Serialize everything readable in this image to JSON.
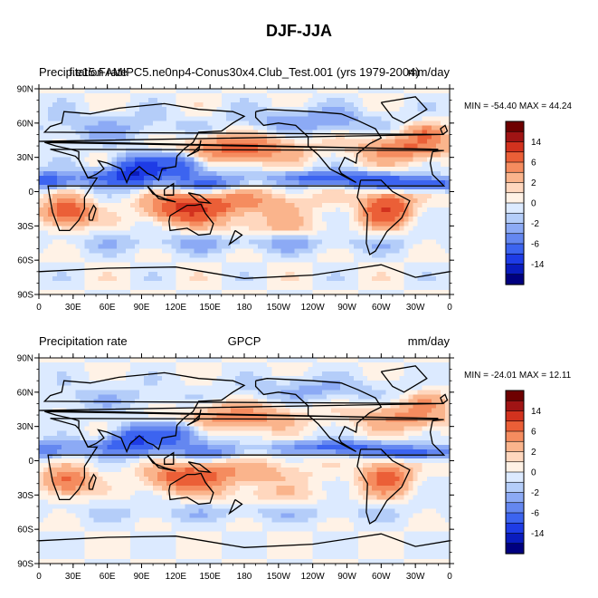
{
  "figure": {
    "title": "DJF-JJA"
  },
  "chart_data": [
    {
      "type": "heatmap",
      "left_title": "Precipitation rate",
      "center_title": "f.e15.FAMIPC5.ne0np4-Conus30x4.Club_Test.001 (yrs 1979-2004)",
      "units": "mm/day",
      "stats_text": "MIN = -54.40 MAX =  44.24",
      "min": -54.4,
      "max": 44.24,
      "x_ticks": [
        "0",
        "30E",
        "60E",
        "90E",
        "120E",
        "150E",
        "180",
        "150W",
        "120W",
        "90W",
        "60W",
        "30W",
        "0"
      ],
      "y_ticks": [
        "90N",
        "60N",
        "30N",
        "0",
        "30S",
        "60S",
        "90S"
      ],
      "colorbar_labels": [
        "14",
        "6",
        "2",
        "0",
        "-2",
        "-6",
        "-14"
      ],
      "levels": [
        -20,
        -14,
        -10,
        -6,
        -4,
        -2,
        -1,
        0,
        1,
        2,
        4,
        6,
        10,
        14,
        20
      ],
      "field": "model"
    },
    {
      "type": "heatmap",
      "left_title": "Precipitation rate",
      "center_title": "GPCP",
      "units": "mm/day",
      "stats_text": "MIN = -24.01 MAX =  12.11",
      "min": -24.01,
      "max": 12.11,
      "x_ticks": [
        "0",
        "30E",
        "60E",
        "90E",
        "120E",
        "150E",
        "180",
        "150W",
        "120W",
        "90W",
        "60W",
        "30W",
        "0"
      ],
      "y_ticks": [
        "90N",
        "60N",
        "30N",
        "0",
        "30S",
        "60S",
        "90S"
      ],
      "colorbar_labels": [
        "14",
        "6",
        "2",
        "0",
        "-2",
        "-6",
        "-14"
      ],
      "levels": [
        -20,
        -14,
        -10,
        -6,
        -4,
        -2,
        -1,
        0,
        1,
        2,
        4,
        6,
        10,
        14,
        20
      ],
      "field": "obs"
    }
  ],
  "colors": {
    "scale": [
      "#000080",
      "#0a1cbe",
      "#1e3ce6",
      "#3c64f0",
      "#6487f0",
      "#8caaf5",
      "#b4cdf9",
      "#dceaff",
      "#fff2e6",
      "#ffd7be",
      "#fab48c",
      "#f58c5f",
      "#eb5f37",
      "#d2321e",
      "#a01414",
      "#6e0000"
    ]
  }
}
